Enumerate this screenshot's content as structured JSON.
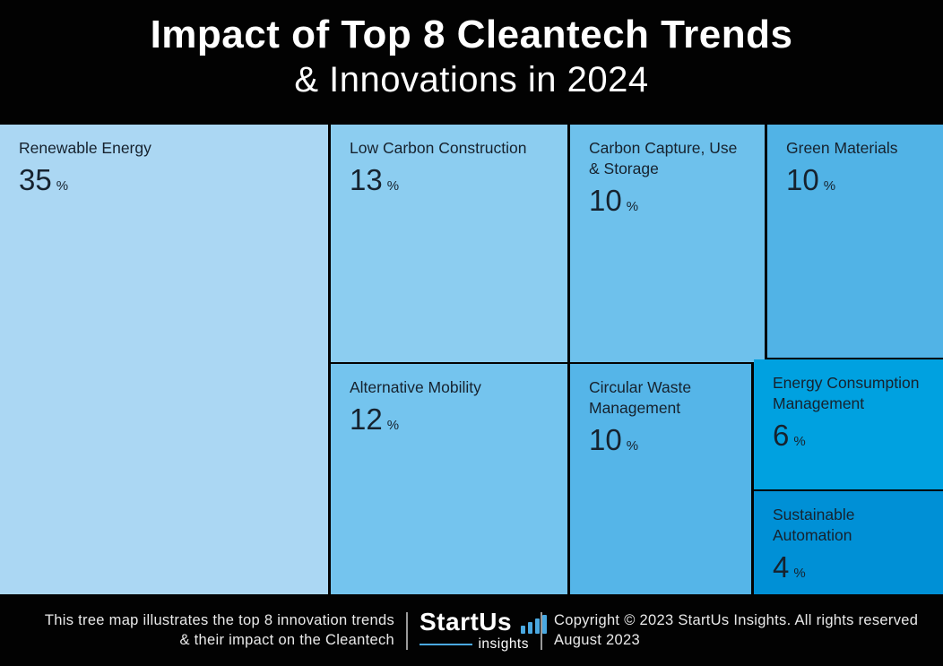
{
  "header": {
    "title_line1": "Impact of Top 8 Cleantech Trends",
    "title_line2": "& Innovations in 2024"
  },
  "chart_data": {
    "type": "treemap",
    "title": "Impact of Top 8 Cleantech Trends & Innovations in 2024",
    "unit": "%",
    "items": [
      {
        "label": "Renewable Energy",
        "value": 35,
        "color": "#abd7f3"
      },
      {
        "label": "Low Carbon Construction",
        "value": 13,
        "color": "#8ccdf0"
      },
      {
        "label": "Alternative Mobility",
        "value": 12,
        "color": "#74c4ee"
      },
      {
        "label": "Carbon Capture, Use & Storage",
        "value": 10,
        "color": "#6ec1ec"
      },
      {
        "label": "Circular Waste Management",
        "value": 10,
        "color": "#55b5e8"
      },
      {
        "label": "Green Materials",
        "value": 10,
        "color": "#51b3e6"
      },
      {
        "label": "Energy Consumption Management",
        "value": 6,
        "color": "#00a1e0"
      },
      {
        "label": "Sustainable Automation",
        "value": 4,
        "color": "#0090d6"
      }
    ]
  },
  "footer": {
    "note_line1": "This tree map illustrates the top 8 innovation trends",
    "note_line2": "& their impact on the Cleantech",
    "logo": {
      "name": "StartUs",
      "sub": "insights"
    },
    "copyright_line1": "Copyright © 2023 StartUs Insights. All rights reserved",
    "copyright_line2": "August 2023"
  },
  "colors": {
    "background": "#020202",
    "tile_text": "#16222e",
    "logo_accent": "#4aa8e0",
    "divider": "#9a9a9a"
  }
}
